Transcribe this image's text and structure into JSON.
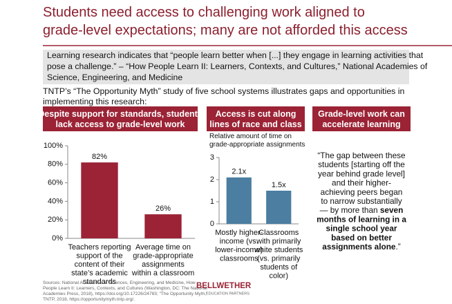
{
  "title": "Students need access to challenging work aligned to\ngrade-level expectations; many are not afforded this access",
  "intro": "Learning research indicates that “people learn better when [...] they engage in learning activities that\npose a challenge.” – “How People Learn II: Learners, Contexts, and Cultures,” National Academies of\nScience, Engineering, and Medicine",
  "lead": "TNTP’s “The Opportunity Myth” study of five school systems illustrates gaps and opportunities in\nimplementing this research:",
  "chart_data": [
    {
      "type": "bar",
      "title": "Despite support for standards, students\nlack access to grade-level work",
      "categories": [
        "Teachers reporting\nsupport of the\ncontent of their\nstate’s academic\nstandards",
        "Average time on\ngrade-appropriate\nassignments\nwithin a classroom"
      ],
      "values": [
        82,
        26
      ],
      "value_labels": [
        "82%",
        "26%"
      ],
      "color": "#9b2335",
      "ylim": [
        0,
        100
      ],
      "yticks": [
        {
          "value": 0,
          "label": "0%"
        },
        {
          "value": 20,
          "label": "20%"
        },
        {
          "value": 40,
          "label": "40%"
        },
        {
          "value": 60,
          "label": "60%"
        },
        {
          "value": 80,
          "label": "80%"
        },
        {
          "value": 100,
          "label": "100%"
        }
      ]
    },
    {
      "type": "bar",
      "title": "Access is cut along\nlines of race and class",
      "subtitle": "Relative amount of time on\ngrade-appropriate assignments",
      "categories": [
        "Mostly higher-\nincome (vs.\nlower-income)\nclassrooms",
        "Classrooms\nwith primarily\nwhite students\n(vs. primarily\nstudents of\ncolor)"
      ],
      "values": [
        2.1,
        1.5
      ],
      "value_labels": [
        "2.1x",
        "1.5x"
      ],
      "color": "#4b7ea1",
      "ylim": [
        0,
        3
      ],
      "yticks": [
        0,
        1,
        2,
        3
      ]
    }
  ],
  "quote": {
    "heading": "Grade-level work can\naccelerate learning",
    "lines": [
      [
        {
          "text": "“The gap between these",
          "bold": false
        }
      ],
      [
        {
          "text": "students [starting off the",
          "bold": false
        }
      ],
      [
        {
          "text": "year behind grade level]",
          "bold": false
        }
      ],
      [
        {
          "text": "and their higher-",
          "bold": false
        }
      ],
      [
        {
          "text": "achieving peers began",
          "bold": false
        }
      ],
      [
        {
          "text": "to narrow substantially",
          "bold": false
        }
      ],
      [
        {
          "text": "— by more than ",
          "bold": false
        },
        {
          "text": "seven",
          "bold": true
        }
      ],
      [
        {
          "text": "months of learning in a",
          "bold": true
        }
      ],
      [
        {
          "text": "single school year",
          "bold": true
        }
      ],
      [
        {
          "text": "based on better",
          "bold": true
        }
      ],
      [
        {
          "text": "assignments alone",
          "bold": true
        },
        {
          "text": ".”",
          "bold": false
        }
      ]
    ]
  },
  "sources": "Sources: National Academies of Sciences, Engineering, and Medicine, How\nPeople Learn II: Learners, Contexts, and Cultures (Washington, DC: The National\nAcademies Press, 2018), https://doi.org/10.17226/24783; “The Opportunity Myth,”\nTNTP, 2018, https://opportunitymyth.tntp.org/.",
  "logo": {
    "name": "BELLWETHER",
    "tagline": "EDUCATION PARTNERS"
  }
}
